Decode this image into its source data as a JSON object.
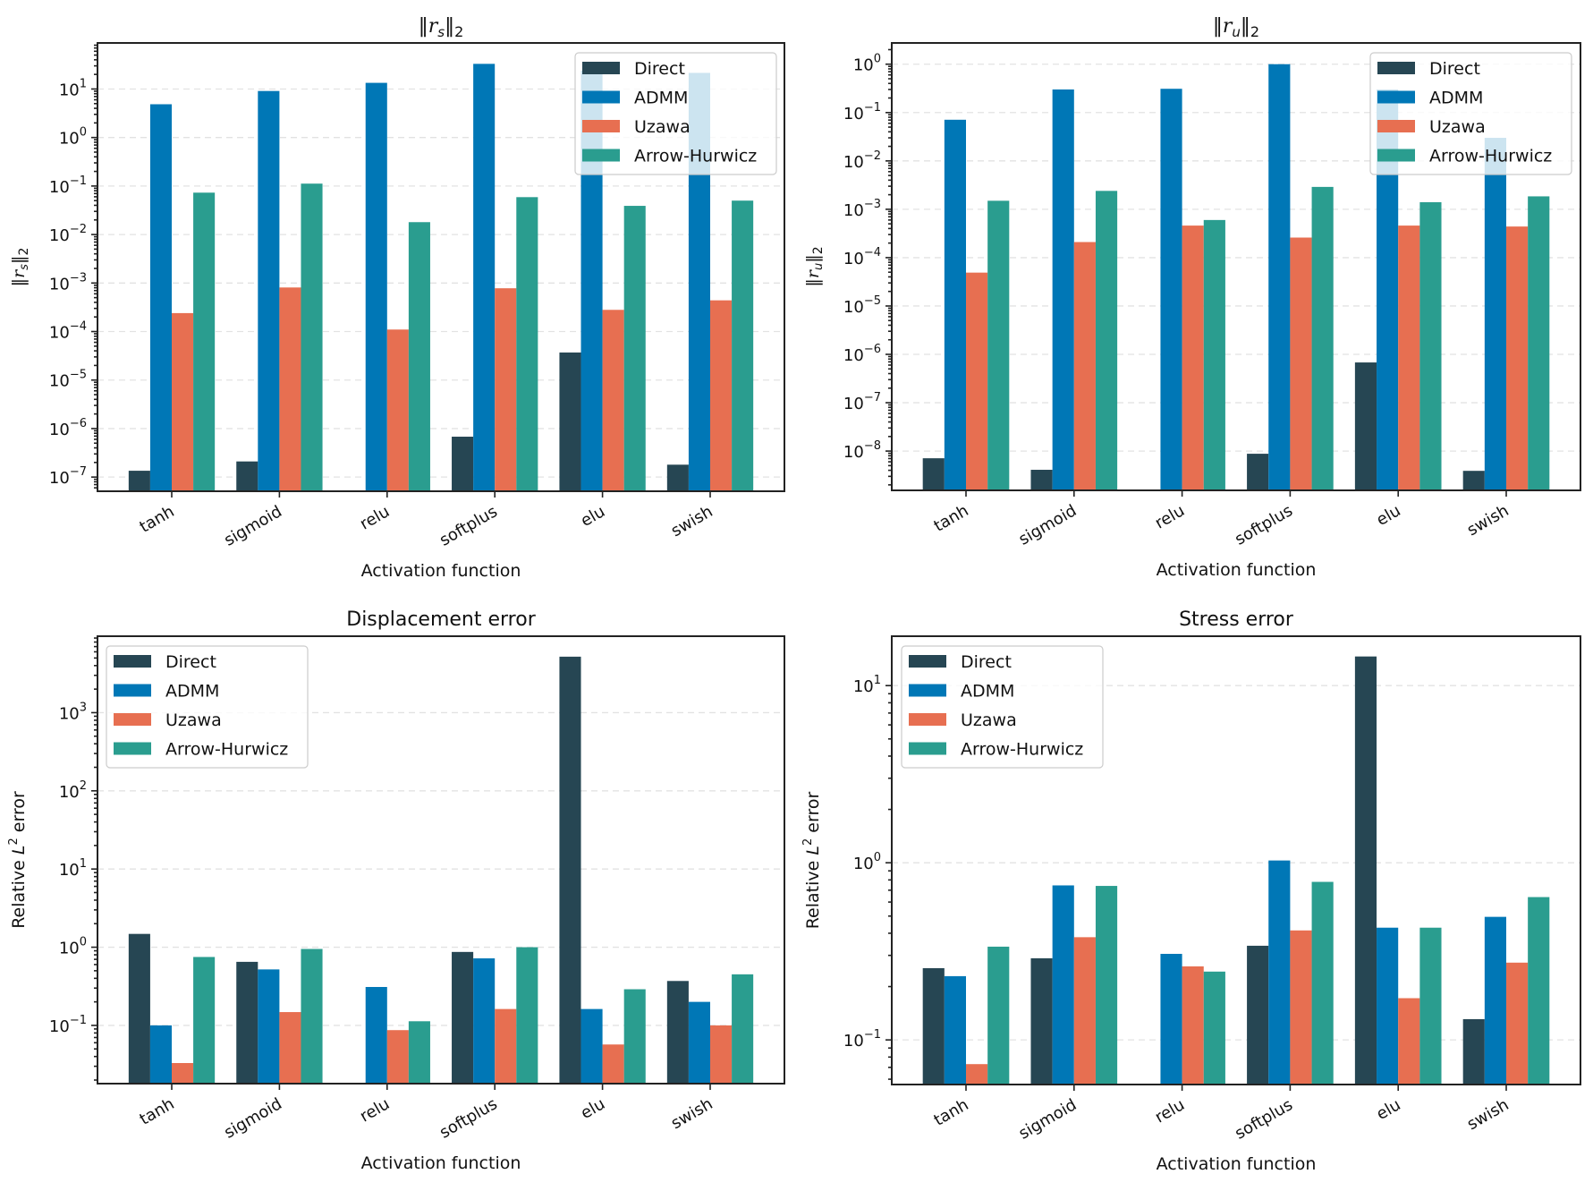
{
  "chart_data": [
    {
      "id": "rs",
      "type": "bar",
      "title": "‖r_s‖₂",
      "title_parts": {
        "norm": "‖",
        "var": "r",
        "sub": "s",
        "norm_close": "‖",
        "tail": "2"
      },
      "xlabel": "Activation function",
      "ylabel": "‖r_s‖₂",
      "yscale": "log",
      "ylim": [
        5.1e-08,
        89
      ],
      "yticks": [
        {
          "exp": -7
        },
        {
          "exp": -6
        },
        {
          "exp": -5
        },
        {
          "exp": -4
        },
        {
          "exp": -3
        },
        {
          "exp": -2
        },
        {
          "exp": -1
        },
        {
          "exp": 0
        },
        {
          "exp": 1
        }
      ],
      "grid": true,
      "legend_position": "upper-right",
      "categories": [
        "tanh",
        "sigmoid",
        "relu",
        "softplus",
        "elu",
        "swish"
      ],
      "series": [
        {
          "name": "Direct",
          "color": "#264653",
          "values": [
            1.35e-07,
            2.1e-07,
            null,
            6.8e-07,
            3.7e-05,
            1.8e-07
          ]
        },
        {
          "name": "ADMM",
          "color": "#0077b6",
          "values": [
            4.85,
            9.1,
            13.4,
            33,
            24,
            21.5
          ]
        },
        {
          "name": "Uzawa",
          "color": "#e76f51",
          "values": [
            0.00024,
            0.00081,
            0.00011,
            0.00078,
            0.00028,
            0.00044
          ]
        },
        {
          "name": "Arrow-Hurwicz",
          "color": "#2a9d8f",
          "values": [
            0.073,
            0.112,
            0.018,
            0.059,
            0.039,
            0.05
          ]
        }
      ]
    },
    {
      "id": "ru",
      "type": "bar",
      "title": "‖r_u‖₂",
      "title_parts": {
        "norm": "‖",
        "var": "r",
        "sub": "u",
        "norm_close": "‖",
        "tail": "2"
      },
      "xlabel": "Activation function",
      "ylabel": "‖r_u‖₂",
      "yscale": "log",
      "ylim": [
        1.54e-09,
        2.75
      ],
      "yticks": [
        {
          "exp": -8
        },
        {
          "exp": -7
        },
        {
          "exp": -6
        },
        {
          "exp": -5
        },
        {
          "exp": -4
        },
        {
          "exp": -3
        },
        {
          "exp": -2
        },
        {
          "exp": -1
        },
        {
          "exp": 0
        }
      ],
      "grid": true,
      "legend_position": "upper-right",
      "categories": [
        "tanh",
        "sigmoid",
        "relu",
        "softplus",
        "elu",
        "swish"
      ],
      "series": [
        {
          "name": "Direct",
          "color": "#264653",
          "values": [
            7.1e-09,
            4.1e-09,
            null,
            8.8e-09,
            6.8e-07,
            3.9e-09
          ]
        },
        {
          "name": "ADMM",
          "color": "#0077b6",
          "values": [
            0.071,
            0.3,
            0.31,
            1.0,
            0.3,
            0.03
          ]
        },
        {
          "name": "Uzawa",
          "color": "#e76f51",
          "values": [
            4.9e-05,
            0.00021,
            0.00046,
            0.00026,
            0.00046,
            0.00044
          ]
        },
        {
          "name": "Arrow-Hurwicz",
          "color": "#2a9d8f",
          "values": [
            0.0015,
            0.0024,
            0.0006,
            0.0029,
            0.0014,
            0.00185
          ]
        }
      ]
    },
    {
      "id": "disp",
      "type": "bar",
      "title": "Displacement error",
      "xlabel": "Activation function",
      "ylabel_parts": {
        "pre": "Relative ",
        "var": "L",
        "sup": "2",
        "post": " error"
      },
      "yscale": "log",
      "ylim": [
        0.018,
        9500
      ],
      "yticks": [
        {
          "exp": -1
        },
        {
          "exp": 0
        },
        {
          "exp": 1
        },
        {
          "exp": 2
        },
        {
          "exp": 3
        }
      ],
      "grid": true,
      "legend_position": "upper-left",
      "categories": [
        "tanh",
        "sigmoid",
        "relu",
        "softplus",
        "elu",
        "swish"
      ],
      "series": [
        {
          "name": "Direct",
          "color": "#264653",
          "values": [
            1.48,
            0.65,
            null,
            0.87,
            5200,
            0.37
          ]
        },
        {
          "name": "ADMM",
          "color": "#0077b6",
          "values": [
            0.1,
            0.52,
            0.31,
            0.72,
            0.162,
            0.2
          ]
        },
        {
          "name": "Uzawa",
          "color": "#e76f51",
          "values": [
            0.033,
            0.148,
            0.087,
            0.162,
            0.057,
            0.1
          ]
        },
        {
          "name": "Arrow-Hurwicz",
          "color": "#2a9d8f",
          "values": [
            0.75,
            0.95,
            0.113,
            1.0,
            0.29,
            0.45
          ]
        }
      ]
    },
    {
      "id": "stress",
      "type": "bar",
      "title": "Stress error",
      "xlabel": "Activation function",
      "ylabel_parts": {
        "pre": "Relative ",
        "var": "L",
        "sup": "2",
        "post": " error"
      },
      "yscale": "log",
      "ylim": [
        0.056,
        19
      ],
      "yticks": [
        {
          "exp": -1
        },
        {
          "exp": 0
        },
        {
          "exp": 1
        }
      ],
      "grid": true,
      "legend_position": "upper-left",
      "categories": [
        "tanh",
        "sigmoid",
        "relu",
        "softplus",
        "elu",
        "swish"
      ],
      "series": [
        {
          "name": "Direct",
          "color": "#264653",
          "values": [
            0.254,
            0.289,
            null,
            0.34,
            14.6,
            0.131
          ]
        },
        {
          "name": "ADMM",
          "color": "#0077b6",
          "values": [
            0.229,
            0.745,
            0.306,
            1.03,
            0.43,
            0.495
          ]
        },
        {
          "name": "Uzawa",
          "color": "#e76f51",
          "values": [
            0.073,
            0.38,
            0.26,
            0.415,
            0.172,
            0.273
          ]
        },
        {
          "name": "Arrow-Hurwicz",
          "color": "#2a9d8f",
          "values": [
            0.336,
            0.74,
            0.243,
            0.78,
            0.43,
            0.64
          ]
        }
      ]
    }
  ]
}
